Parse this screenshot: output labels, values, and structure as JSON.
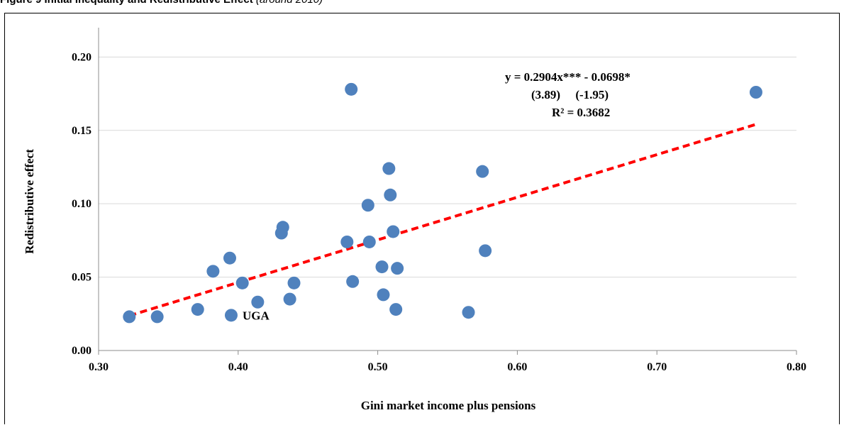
{
  "caption": {
    "title": "Figure 9 Initial Inequality and Redistributive Effect",
    "note": "(around 2010)"
  },
  "chart_data": {
    "type": "scatter",
    "title": "",
    "xlabel": "Gini market income plus pensions",
    "ylabel": "Redistributive effect",
    "xlim": [
      0.3,
      0.8
    ],
    "ylim": [
      0.0,
      0.22
    ],
    "xticks": [
      "0.30",
      "0.40",
      "0.50",
      "0.60",
      "0.70",
      "0.80"
    ],
    "yticks": [
      "0.00",
      "0.05",
      "0.10",
      "0.15",
      "0.20"
    ],
    "grid": "horizontal",
    "marker_color": "#4f81bd",
    "trendline_color": "#ff0000",
    "points": [
      {
        "x": 0.322,
        "y": 0.023
      },
      {
        "x": 0.342,
        "y": 0.023
      },
      {
        "x": 0.371,
        "y": 0.028
      },
      {
        "x": 0.382,
        "y": 0.054
      },
      {
        "x": 0.394,
        "y": 0.063
      },
      {
        "x": 0.395,
        "y": 0.024,
        "label": "UGA"
      },
      {
        "x": 0.403,
        "y": 0.046
      },
      {
        "x": 0.414,
        "y": 0.033
      },
      {
        "x": 0.431,
        "y": 0.08
      },
      {
        "x": 0.432,
        "y": 0.084
      },
      {
        "x": 0.437,
        "y": 0.035
      },
      {
        "x": 0.44,
        "y": 0.046
      },
      {
        "x": 0.478,
        "y": 0.074
      },
      {
        "x": 0.481,
        "y": 0.178
      },
      {
        "x": 0.482,
        "y": 0.047
      },
      {
        "x": 0.493,
        "y": 0.099
      },
      {
        "x": 0.494,
        "y": 0.074
      },
      {
        "x": 0.503,
        "y": 0.057
      },
      {
        "x": 0.504,
        "y": 0.038
      },
      {
        "x": 0.508,
        "y": 0.124
      },
      {
        "x": 0.509,
        "y": 0.106
      },
      {
        "x": 0.511,
        "y": 0.081
      },
      {
        "x": 0.513,
        "y": 0.028
      },
      {
        "x": 0.514,
        "y": 0.056
      },
      {
        "x": 0.565,
        "y": 0.026
      },
      {
        "x": 0.575,
        "y": 0.122
      },
      {
        "x": 0.577,
        "y": 0.068
      },
      {
        "x": 0.771,
        "y": 0.176
      }
    ],
    "trendline": {
      "slope": 0.2904,
      "intercept": -0.0698,
      "x_range": [
        0.322,
        0.771
      ],
      "equation": "y = 0.2904x*** - 0.0698*",
      "t_stats": "(3.89)     (-1.95)",
      "r_squared": "R² = 0.3682"
    }
  }
}
